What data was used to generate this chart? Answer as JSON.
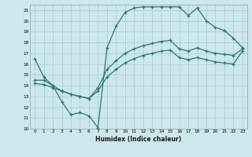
{
  "title": "",
  "xlabel": "Humidex (Indice chaleur)",
  "xlim": [
    -0.5,
    23.5
  ],
  "ylim": [
    10,
    21.5
  ],
  "xticks": [
    0,
    1,
    2,
    3,
    4,
    5,
    6,
    7,
    8,
    9,
    10,
    11,
    12,
    13,
    14,
    15,
    16,
    17,
    18,
    19,
    20,
    21,
    22,
    23
  ],
  "yticks": [
    10,
    11,
    12,
    13,
    14,
    15,
    16,
    17,
    18,
    19,
    20,
    21
  ],
  "bg_color": "#cce8ec",
  "grid_color": "#aac8cc",
  "line_color": "#2a7a6a",
  "line1_x": [
    0,
    1,
    2,
    3,
    4,
    5,
    6,
    7,
    8,
    9,
    10,
    11,
    12,
    13,
    14,
    15,
    16,
    17,
    18,
    19,
    20,
    21,
    22,
    23
  ],
  "line1_y": [
    16.5,
    14.8,
    14.0,
    12.5,
    11.3,
    11.5,
    11.2,
    10.1,
    17.5,
    19.5,
    20.8,
    21.2,
    21.3,
    21.3,
    21.3,
    21.3,
    21.3,
    20.5,
    21.2,
    20.0,
    19.4,
    19.1,
    18.4,
    17.5
  ],
  "line2_x": [
    0,
    1,
    2,
    3,
    4,
    5,
    6,
    7,
    8,
    9,
    10,
    11,
    12,
    13,
    14,
    15,
    16,
    17,
    18,
    19,
    20,
    21,
    22,
    23
  ],
  "line2_y": [
    14.5,
    14.5,
    14.0,
    13.5,
    13.2,
    13.0,
    12.8,
    13.8,
    15.5,
    16.3,
    17.0,
    17.4,
    17.7,
    17.9,
    18.1,
    18.2,
    17.4,
    17.2,
    17.5,
    17.2,
    17.0,
    16.9,
    16.8,
    17.4
  ],
  "line3_x": [
    0,
    1,
    2,
    3,
    4,
    5,
    6,
    7,
    8,
    9,
    10,
    11,
    12,
    13,
    14,
    15,
    16,
    17,
    18,
    19,
    20,
    21,
    22,
    23
  ],
  "line3_y": [
    14.2,
    14.1,
    13.8,
    13.5,
    13.2,
    13.0,
    12.8,
    13.5,
    14.8,
    15.5,
    16.1,
    16.5,
    16.8,
    17.0,
    17.2,
    17.3,
    16.6,
    16.4,
    16.6,
    16.4,
    16.2,
    16.1,
    16.0,
    17.2
  ]
}
